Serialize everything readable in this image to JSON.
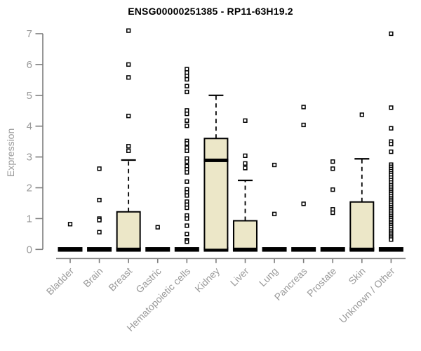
{
  "chart_data": {
    "type": "boxplot",
    "title": "ENSG00000251385 - RP11-63H19.2",
    "xlabel": "",
    "ylabel": "Expression",
    "ylim": [
      0,
      7
    ],
    "yticks": [
      0,
      1,
      2,
      3,
      4,
      5,
      6,
      7
    ],
    "grid": false,
    "legend": "none",
    "marker_style": "open-square",
    "categories": [
      "Bladder",
      "Brain",
      "Breast",
      "Gastric",
      "Hematopoietic cells",
      "Kidney",
      "Liver",
      "Lung",
      "Pancreas",
      "Prostate",
      "Skin",
      "Unknown / Other"
    ],
    "boxes": [
      {
        "category": "Bladder",
        "low": 0,
        "q1": 0,
        "median": 0,
        "q3": 0,
        "high": 0,
        "outliers": [
          0.82
        ]
      },
      {
        "category": "Brain",
        "low": 0,
        "q1": 0,
        "median": 0,
        "q3": 0,
        "high": 0,
        "outliers": [
          2.62,
          1.6,
          1.0,
          0.95,
          0.56
        ]
      },
      {
        "category": "Breast",
        "low": 0,
        "q1": 0,
        "median": 0,
        "q3": 1.22,
        "high": 2.9,
        "outliers": [
          7.1,
          6.0,
          5.58,
          4.33,
          3.35,
          3.2
        ]
      },
      {
        "category": "Gastric",
        "low": 0,
        "q1": 0,
        "median": 0,
        "q3": 0,
        "high": 0,
        "outliers": [
          0.72
        ]
      },
      {
        "category": "Hematopoietic cells",
        "low": 0,
        "q1": 0,
        "median": 0,
        "q3": 0,
        "high": 0,
        "outliers": [
          5.85,
          5.74,
          5.63,
          5.52,
          5.3,
          5.11,
          4.51,
          4.4,
          4.18,
          4.01,
          3.52,
          3.44,
          3.3,
          3.2,
          2.95,
          2.85,
          2.7,
          2.6,
          2.5,
          2.2,
          1.95,
          1.85,
          1.75,
          1.55,
          1.45,
          1.35,
          1.1,
          1.0,
          0.77,
          0.5,
          0.3,
          0.25
        ]
      },
      {
        "category": "Kidney",
        "low": 0,
        "q1": 0,
        "median": 2.89,
        "q3": 3.6,
        "high": 5.0,
        "outliers": []
      },
      {
        "category": "Liver",
        "low": 0,
        "q1": 0,
        "median": 0,
        "q3": 0.93,
        "high": 2.24,
        "outliers": [
          4.18,
          3.04,
          2.79,
          2.64
        ]
      },
      {
        "category": "Lung",
        "low": 0,
        "q1": 0,
        "median": 0,
        "q3": 0,
        "high": 0,
        "outliers": [
          2.74,
          1.15
        ]
      },
      {
        "category": "Pancreas",
        "low": 0,
        "q1": 0,
        "median": 0,
        "q3": 0,
        "high": 0,
        "outliers": [
          4.62,
          4.04,
          1.48
        ]
      },
      {
        "category": "Prostate",
        "low": 0,
        "q1": 0,
        "median": 0,
        "q3": 0,
        "high": 0,
        "outliers": [
          2.85,
          2.62,
          1.94,
          1.3,
          1.19
        ]
      },
      {
        "category": "Skin",
        "low": 0,
        "q1": 0,
        "median": 0,
        "q3": 1.54,
        "high": 2.94,
        "outliers": [
          4.37
        ]
      },
      {
        "category": "Unknown / Other",
        "low": 0,
        "q1": 0,
        "median": 0,
        "q3": 0,
        "high": 0,
        "outliers": [
          7.0,
          4.6,
          3.93,
          3.5,
          3.42,
          3.17,
          2.75,
          2.68,
          2.61,
          2.54,
          2.47,
          2.41,
          2.33,
          2.25,
          2.17,
          2.09,
          2.03,
          1.97,
          1.91,
          1.85,
          1.79,
          1.73,
          1.67,
          1.61,
          1.55,
          1.49,
          1.43,
          1.37,
          1.31,
          1.25,
          1.19,
          1.13,
          1.07,
          1.01,
          0.95,
          0.89,
          0.84,
          0.78,
          0.72,
          0.66,
          0.6,
          0.54,
          0.48,
          0.42,
          0.38,
          0.32
        ]
      }
    ],
    "colors": {
      "box_fill": "#ECE7C8",
      "box_border": "#000000",
      "median": "#000000",
      "whisker": "#000000",
      "outlier": "#000000",
      "axis": "#7d7d7d",
      "tick_label": "#9a9a9a",
      "title": "#000000",
      "background": "#ffffff"
    }
  }
}
